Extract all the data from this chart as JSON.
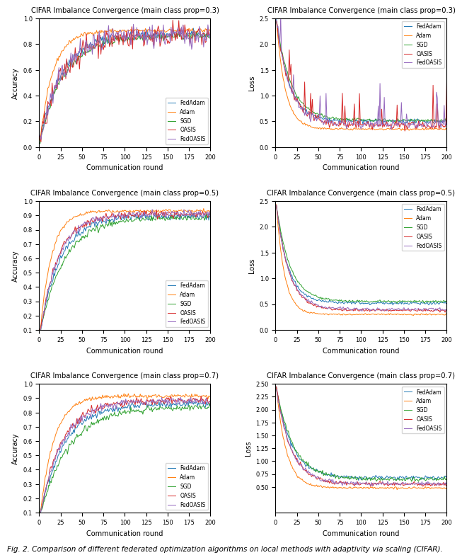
{
  "titles_acc": [
    "CIFAR Imbalance Convergence (main class prop=0.3)",
    "CIFAR Imbalance Convergence (main class prop=0.5)",
    "CIFAR Imbalance Convergence (main class prop=0.7)"
  ],
  "titles_loss": [
    "CIFAR Imbalance Convergence (main class prop=0.3)",
    "CIFAR Imbalance Convergence (main class prop=0.5)",
    "CIFAR Imbalance Convergence (main class prop=0.7)"
  ],
  "xlabel": "Communication round",
  "ylabel_acc": "Accuracy",
  "ylabel_loss": "Loss",
  "methods": [
    "FedAdam",
    "Adam",
    "SGD",
    "OASIS",
    "FedOASIS"
  ],
  "colors": [
    "#1f77b4",
    "#ff7f0e",
    "#2ca02c",
    "#d62728",
    "#9467bd"
  ],
  "n_rounds": 200,
  "figsize": [
    6.4,
    7.8
  ],
  "dpi": 100,
  "caption": "Fig. 2. Comparison of different federated optimization algorithms on local methods with adaptivity via scaling (CIFAR).",
  "caption_fontsize": 7.5
}
